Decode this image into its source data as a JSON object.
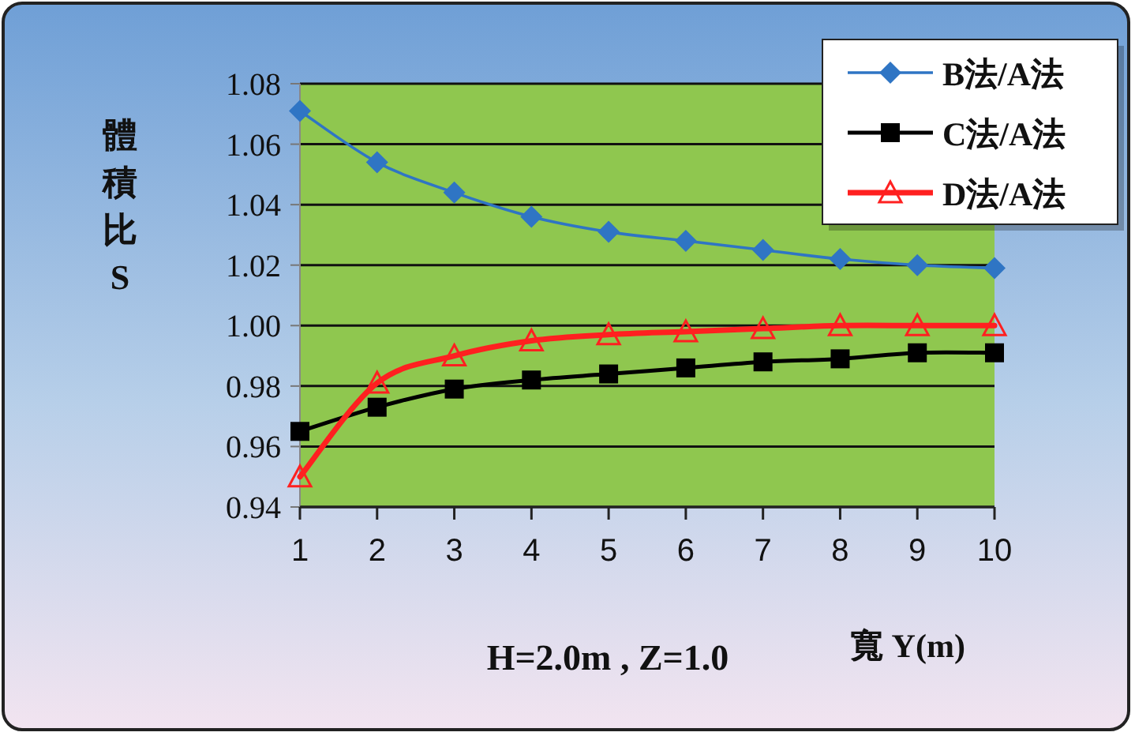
{
  "chart_data": {
    "type": "line",
    "xlabel": "寬 Y(m)",
    "ylabel": "體積比S",
    "annotations": [
      "H=2.0m , Z=1.0"
    ],
    "categories": [
      "1",
      "2",
      "3",
      "4",
      "5",
      "6",
      "7",
      "8",
      "9",
      "10"
    ],
    "ylim": [
      0.94,
      1.08
    ],
    "yticks": [
      0.94,
      0.96,
      0.98,
      {
        "value": 1.0,
        "label": "1.00"
      },
      1.02,
      1.04,
      1.06,
      1.08
    ],
    "grid": "y",
    "legend": "top right",
    "line_style": "solid",
    "series": [
      {
        "name": "B法/A法",
        "color": "#2f75c4",
        "marker": "diamond",
        "values": [
          1.071,
          1.054,
          1.044,
          1.036,
          1.031,
          1.028,
          1.025,
          1.022,
          1.02,
          1.019
        ]
      },
      {
        "name": "C法/A法",
        "color": "#000000",
        "marker": "square",
        "values": [
          0.965,
          0.973,
          0.979,
          0.982,
          0.984,
          0.986,
          0.988,
          0.989,
          0.991,
          0.991
        ]
      },
      {
        "name": "D法/A法",
        "color": "#ff2020",
        "marker": "triangle",
        "values": [
          0.95,
          0.981,
          0.99,
          0.995,
          0.997,
          0.998,
          0.999,
          1.0,
          1.0,
          1.0
        ]
      }
    ]
  }
}
